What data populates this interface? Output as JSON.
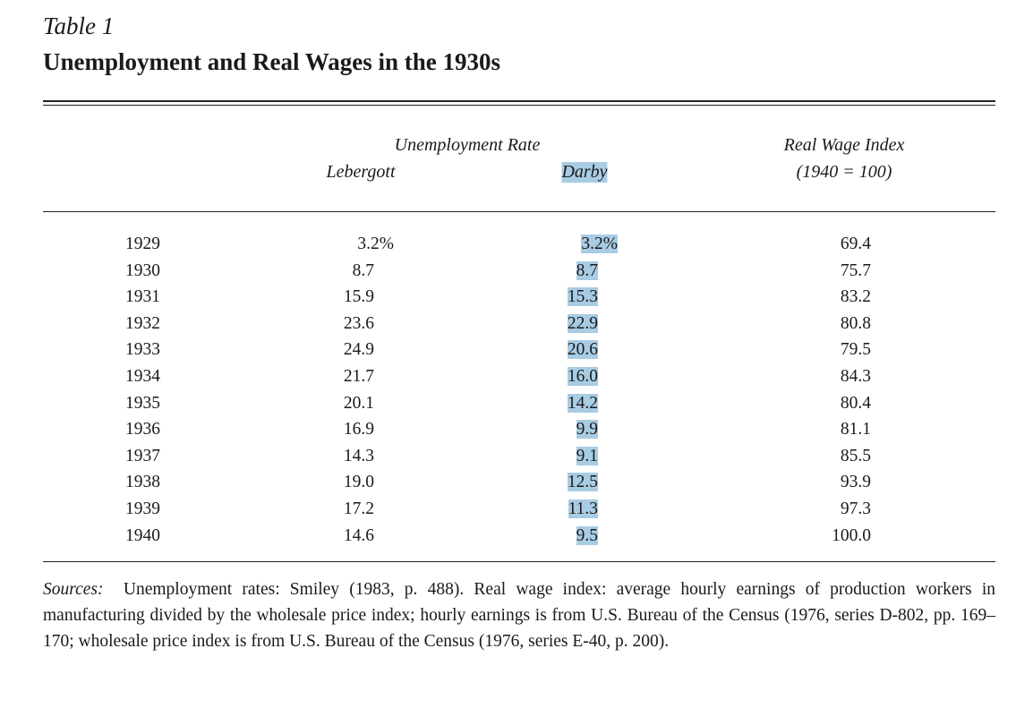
{
  "table_label": "Table 1",
  "title": "Unemployment and Real Wages in the 1930s",
  "headers": {
    "unemployment_rate": "Unemployment Rate",
    "lebergott": "Lebergott",
    "darby": "Darby",
    "real_wage_index": "Real Wage Index",
    "real_wage_base": "(1940 = 100)"
  },
  "highlight_color": "#a8cce4",
  "highlighted_column": "Darby",
  "rows": [
    {
      "year": "1929",
      "lebergott": "3.2%",
      "darby": "3.2%",
      "real_wage": "69.4"
    },
    {
      "year": "1930",
      "lebergott": "8.7",
      "darby": "8.7",
      "real_wage": "75.7"
    },
    {
      "year": "1931",
      "lebergott": "15.9",
      "darby": "15.3",
      "real_wage": "83.2"
    },
    {
      "year": "1932",
      "lebergott": "23.6",
      "darby": "22.9",
      "real_wage": "80.8"
    },
    {
      "year": "1933",
      "lebergott": "24.9",
      "darby": "20.6",
      "real_wage": "79.5"
    },
    {
      "year": "1934",
      "lebergott": "21.7",
      "darby": "16.0",
      "real_wage": "84.3"
    },
    {
      "year": "1935",
      "lebergott": "20.1",
      "darby": "14.2",
      "real_wage": "80.4"
    },
    {
      "year": "1936",
      "lebergott": "16.9",
      "darby": "9.9",
      "real_wage": "81.1"
    },
    {
      "year": "1937",
      "lebergott": "14.3",
      "darby": "9.1",
      "real_wage": "85.5"
    },
    {
      "year": "1938",
      "lebergott": "19.0",
      "darby": "12.5",
      "real_wage": "93.9"
    },
    {
      "year": "1939",
      "lebergott": "17.2",
      "darby": "11.3",
      "real_wage": "97.3"
    },
    {
      "year": "1940",
      "lebergott": "14.6",
      "darby": "9.5",
      "real_wage": "100.0"
    }
  ],
  "notes": {
    "label": "Sources:",
    "text": "Unemployment rates: Smiley (1983, p. 488). Real wage index: average hourly earnings of production workers in manufacturing divided by the wholesale price index; hourly earnings is from U.S. Bureau of the Census (1976, series D-802, pp. 169–170; wholesale price index is from U.S. Bureau of the Census (1976, series E-40, p. 200)."
  }
}
